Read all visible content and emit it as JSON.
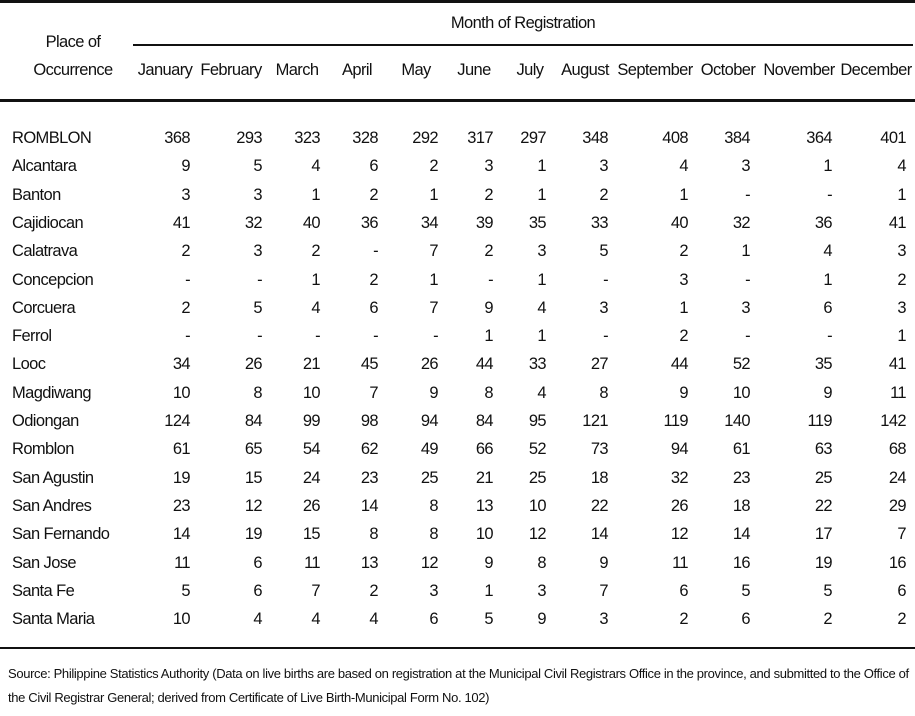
{
  "table": {
    "place_header": "Place of Occurrence",
    "group_header": "Month of Registration",
    "months": [
      "January",
      "February",
      "March",
      "April",
      "May",
      "June",
      "July",
      "August",
      "September",
      "October",
      "November",
      "December"
    ],
    "rows": [
      [
        "ROMBLON",
        368,
        293,
        323,
        328,
        292,
        317,
        297,
        348,
        408,
        384,
        364,
        401
      ],
      [
        "Alcantara",
        9,
        5,
        4,
        6,
        2,
        3,
        1,
        3,
        4,
        3,
        1,
        4
      ],
      [
        "Banton",
        3,
        3,
        1,
        2,
        1,
        2,
        1,
        2,
        1,
        "-",
        "-",
        1
      ],
      [
        "Cajidiocan",
        41,
        32,
        40,
        36,
        34,
        39,
        35,
        33,
        40,
        32,
        36,
        41
      ],
      [
        "Calatrava",
        2,
        3,
        2,
        "-",
        7,
        2,
        3,
        5,
        2,
        1,
        4,
        3
      ],
      [
        "Concepcion",
        "-",
        "-",
        1,
        2,
        1,
        "-",
        1,
        "-",
        3,
        "-",
        1,
        2
      ],
      [
        "Corcuera",
        2,
        5,
        4,
        6,
        7,
        9,
        4,
        3,
        1,
        3,
        6,
        3
      ],
      [
        "Ferrol",
        "-",
        "-",
        "-",
        "-",
        "-",
        1,
        1,
        "-",
        2,
        "-",
        "-",
        1
      ],
      [
        "Looc",
        34,
        26,
        21,
        45,
        26,
        44,
        33,
        27,
        44,
        52,
        35,
        41
      ],
      [
        "Magdiwang",
        10,
        8,
        10,
        7,
        9,
        8,
        4,
        8,
        9,
        10,
        9,
        11
      ],
      [
        "Odiongan",
        124,
        84,
        99,
        98,
        94,
        84,
        95,
        121,
        119,
        140,
        119,
        142
      ],
      [
        "Romblon",
        61,
        65,
        54,
        62,
        49,
        66,
        52,
        73,
        94,
        61,
        63,
        68
      ],
      [
        "San Agustin",
        19,
        15,
        24,
        23,
        25,
        21,
        25,
        18,
        32,
        23,
        25,
        24
      ],
      [
        "San Andres",
        23,
        12,
        26,
        14,
        8,
        13,
        10,
        22,
        26,
        18,
        22,
        29
      ],
      [
        "San Fernando",
        14,
        19,
        15,
        8,
        8,
        10,
        12,
        14,
        12,
        14,
        17,
        7
      ],
      [
        "San Jose",
        11,
        6,
        11,
        13,
        12,
        9,
        8,
        9,
        11,
        16,
        19,
        16
      ],
      [
        "Santa Fe",
        5,
        6,
        7,
        2,
        3,
        1,
        3,
        7,
        6,
        5,
        5,
        6
      ],
      [
        "Santa Maria",
        10,
        4,
        4,
        4,
        6,
        5,
        9,
        3,
        2,
        6,
        2,
        2
      ]
    ],
    "source": "Source: Philippine Statistics Authority (Data on live births are based on registration at the Municipal Civil Registrars Office in the province, and submitted to the Office of the Civil Registrar General; derived from Certificate of Live Birth-Municipal Form No. 102)"
  }
}
